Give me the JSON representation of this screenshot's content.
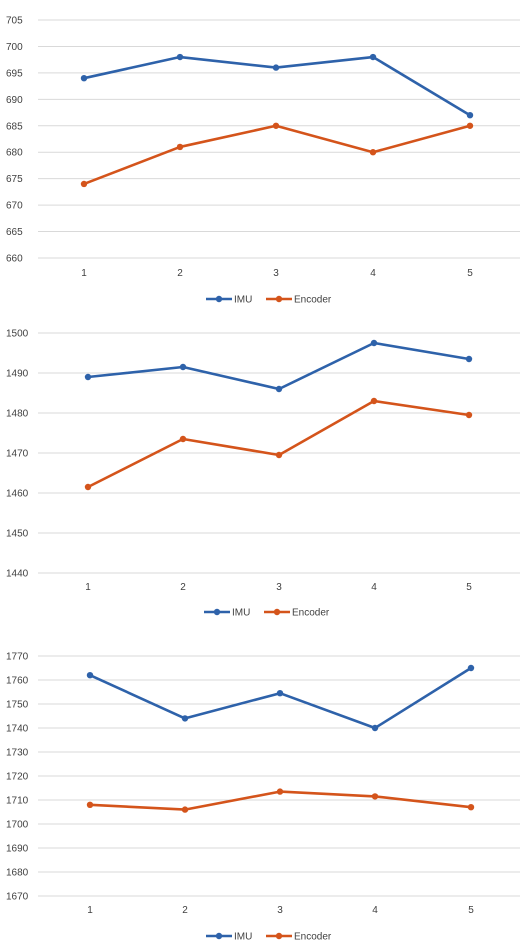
{
  "chart_data": [
    {
      "type": "line",
      "categories": [
        "1",
        "2",
        "3",
        "4",
        "5"
      ],
      "series": [
        {
          "name": "IMU",
          "color": "#2E62AA",
          "values": [
            694,
            698,
            696,
            698,
            687
          ]
        },
        {
          "name": "Encoder",
          "color": "#D4541B",
          "values": [
            674,
            681,
            685,
            680,
            685
          ]
        }
      ],
      "ylim": [
        660,
        705
      ],
      "yticks": [
        660,
        665,
        670,
        675,
        680,
        685,
        690,
        695,
        700,
        705
      ],
      "grid": true,
      "legend": "bottom"
    },
    {
      "type": "line",
      "categories": [
        "1",
        "2",
        "3",
        "4",
        "5"
      ],
      "series": [
        {
          "name": "IMU",
          "color": "#2E62AA",
          "values": [
            1489,
            1491.5,
            1486,
            1497.5,
            1493.5
          ]
        },
        {
          "name": "Encoder",
          "color": "#D4541B",
          "values": [
            1461.5,
            1473.5,
            1469.5,
            1483,
            1479.5
          ]
        }
      ],
      "ylim": [
        1440,
        1500
      ],
      "yticks": [
        1440,
        1450,
        1460,
        1470,
        1480,
        1490,
        1500
      ],
      "grid": true,
      "legend": "bottom"
    },
    {
      "type": "line",
      "categories": [
        "1",
        "2",
        "3",
        "4",
        "5"
      ],
      "series": [
        {
          "name": "IMU",
          "color": "#2E62AA",
          "values": [
            1762,
            1744,
            1754.5,
            1740,
            1765
          ]
        },
        {
          "name": "Encoder",
          "color": "#D4541B",
          "values": [
            1708,
            1706,
            1713.5,
            1711.5,
            1707
          ]
        }
      ],
      "ylim": [
        1670,
        1770
      ],
      "yticks": [
        1670,
        1680,
        1690,
        1700,
        1710,
        1720,
        1730,
        1740,
        1750,
        1760,
        1770
      ],
      "grid": true,
      "legend": "bottom"
    }
  ]
}
